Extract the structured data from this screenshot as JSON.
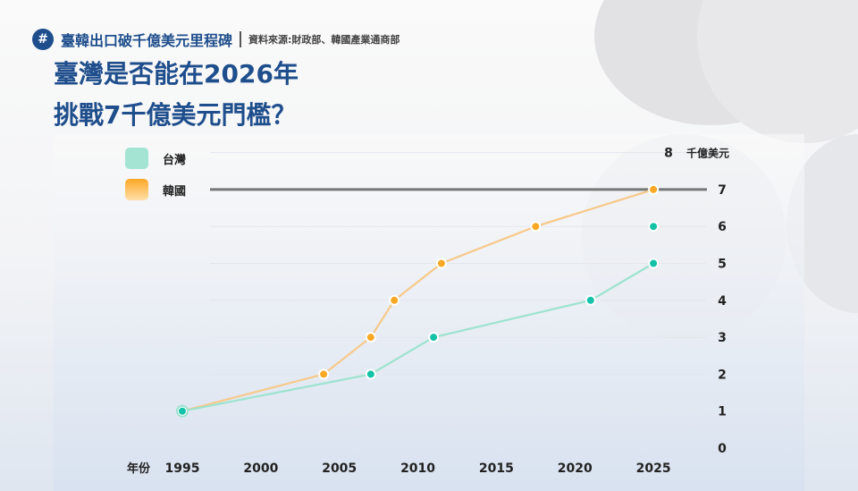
{
  "header": {
    "icon": "hash-icon",
    "series_title": "臺韓出口破千億美元里程碑",
    "source": "資料來源:財政部、韓國產業通商部"
  },
  "title": {
    "line1": "臺灣是否能在2026年",
    "line2": "挑戰7千億美元門檻？"
  },
  "colors": {
    "taiwan": "#9de3cf",
    "korea": "#f7c98a",
    "korea_marker": "#f9a825",
    "taiwan_marker": "#14c2a8",
    "threshold": "#777777",
    "title": "#1f4e8c"
  },
  "chart_data": {
    "type": "line",
    "xlabel": "年份",
    "ylabel": "千億美元",
    "xlim": [
      1995,
      2028
    ],
    "ylim": [
      0,
      8
    ],
    "x_ticks": [
      "1995",
      "2000",
      "2005",
      "2010",
      "2015",
      "2020",
      "2025"
    ],
    "y_ticks": [
      "0",
      "1",
      "2",
      "3",
      "4",
      "5",
      "6",
      "7",
      "8"
    ],
    "grid": true,
    "legend": "top-left",
    "series": [
      {
        "name": "台灣",
        "points": [
          [
            1995,
            1
          ],
          [
            2007,
            2
          ],
          [
            2011,
            3
          ],
          [
            2021,
            4
          ],
          [
            2025,
            5
          ]
        ]
      },
      {
        "name": "韓國",
        "points": [
          [
            1995,
            1
          ],
          [
            2004,
            2
          ],
          [
            2007,
            3
          ],
          [
            2008.5,
            4
          ],
          [
            2011.5,
            5
          ],
          [
            2017.5,
            6
          ],
          [
            2025,
            7
          ]
        ]
      }
    ],
    "projection": {
      "x": 2025,
      "from": 5,
      "to": 6
    },
    "threshold": 7
  }
}
